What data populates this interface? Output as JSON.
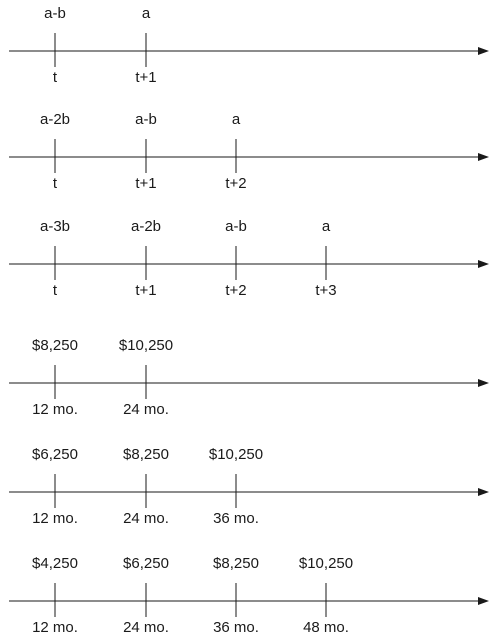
{
  "timelines": [
    {
      "ticks": [
        {
          "top": "a-b",
          "bottom": "t"
        },
        {
          "top": "a",
          "bottom": "t+1"
        }
      ]
    },
    {
      "ticks": [
        {
          "top": "a-2b",
          "bottom": "t"
        },
        {
          "top": "a-b",
          "bottom": "t+1"
        },
        {
          "top": "a",
          "bottom": "t+2"
        }
      ]
    },
    {
      "ticks": [
        {
          "top": "a-3b",
          "bottom": "t"
        },
        {
          "top": "a-2b",
          "bottom": "t+1"
        },
        {
          "top": "a-b",
          "bottom": "t+2"
        },
        {
          "top": "a",
          "bottom": "t+3"
        }
      ]
    },
    {
      "ticks": [
        {
          "top": "$8,250",
          "bottom": "12 mo."
        },
        {
          "top": "$10,250",
          "bottom": "24 mo."
        }
      ]
    },
    {
      "ticks": [
        {
          "top": "$6,250",
          "bottom": "12 mo."
        },
        {
          "top": "$8,250",
          "bottom": "24 mo."
        },
        {
          "top": "$10,250",
          "bottom": "36 mo."
        }
      ]
    },
    {
      "ticks": [
        {
          "top": "$4,250",
          "bottom": "12 mo."
        },
        {
          "top": "$6,250",
          "bottom": "24 mo."
        },
        {
          "top": "$8,250",
          "bottom": "36 mo."
        },
        {
          "top": "$10,250",
          "bottom": "48 mo."
        }
      ]
    }
  ]
}
